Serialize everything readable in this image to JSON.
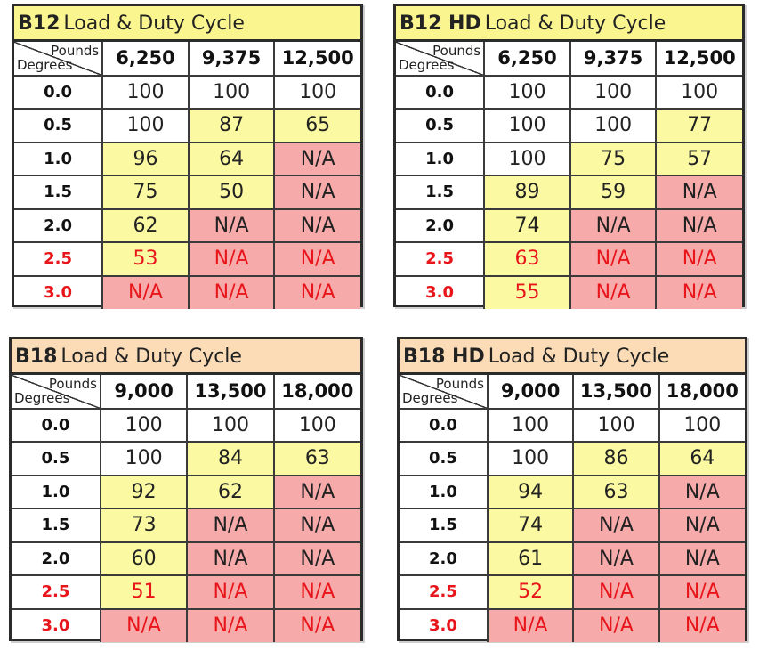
{
  "colors": {
    "white": "#ffffff",
    "yellow": "#fbfaa2",
    "pink": "#f7aaaa",
    "red_text": "#e8151b",
    "b12_title_bg": "#faf58f",
    "b18_title_bg": "#fbdcb6"
  },
  "corner": {
    "pounds_label": "Pounds",
    "degrees_label": "Degrees"
  },
  "tables": [
    {
      "id": "b12",
      "title_bold": "B12",
      "title_rest": "Load & Duty Cycle",
      "columns": [
        "6,250",
        "9,375",
        "12,500"
      ],
      "rows": [
        {
          "deg": "0.0",
          "warn": false,
          "cells": [
            [
              "100",
              "white",
              false
            ],
            [
              "100",
              "white",
              false
            ],
            [
              "100",
              "white",
              false
            ]
          ]
        },
        {
          "deg": "0.5",
          "warn": false,
          "cells": [
            [
              "100",
              "white",
              false
            ],
            [
              "87",
              "yellow",
              false
            ],
            [
              "65",
              "yellow",
              false
            ]
          ]
        },
        {
          "deg": "1.0",
          "warn": false,
          "cells": [
            [
              "96",
              "yellow",
              false
            ],
            [
              "64",
              "yellow",
              false
            ],
            [
              "N/A",
              "pink",
              false
            ]
          ]
        },
        {
          "deg": "1.5",
          "warn": false,
          "cells": [
            [
              "75",
              "yellow",
              false
            ],
            [
              "50",
              "yellow",
              false
            ],
            [
              "N/A",
              "pink",
              false
            ]
          ]
        },
        {
          "deg": "2.0",
          "warn": false,
          "cells": [
            [
              "62",
              "yellow",
              false
            ],
            [
              "N/A",
              "pink",
              false
            ],
            [
              "N/A",
              "pink",
              false
            ]
          ]
        },
        {
          "deg": "2.5",
          "warn": true,
          "cells": [
            [
              "53",
              "yellow",
              true
            ],
            [
              "N/A",
              "pink",
              true
            ],
            [
              "N/A",
              "pink",
              true
            ]
          ]
        },
        {
          "deg": "3.0",
          "warn": true,
          "cells": [
            [
              "N/A",
              "pink",
              true
            ],
            [
              "N/A",
              "pink",
              true
            ],
            [
              "N/A",
              "pink",
              true
            ]
          ]
        }
      ]
    },
    {
      "id": "b12hd",
      "title_bold": "B12 HD",
      "title_rest": "Load & Duty Cycle",
      "columns": [
        "6,250",
        "9,375",
        "12,500"
      ],
      "rows": [
        {
          "deg": "0.0",
          "warn": false,
          "cells": [
            [
              "100",
              "white",
              false
            ],
            [
              "100",
              "white",
              false
            ],
            [
              "100",
              "white",
              false
            ]
          ]
        },
        {
          "deg": "0.5",
          "warn": false,
          "cells": [
            [
              "100",
              "white",
              false
            ],
            [
              "100",
              "white",
              false
            ],
            [
              "77",
              "yellow",
              false
            ]
          ]
        },
        {
          "deg": "1.0",
          "warn": false,
          "cells": [
            [
              "100",
              "white",
              false
            ],
            [
              "75",
              "yellow",
              false
            ],
            [
              "57",
              "yellow",
              false
            ]
          ]
        },
        {
          "deg": "1.5",
          "warn": false,
          "cells": [
            [
              "89",
              "yellow",
              false
            ],
            [
              "59",
              "yellow",
              false
            ],
            [
              "N/A",
              "pink",
              false
            ]
          ]
        },
        {
          "deg": "2.0",
          "warn": false,
          "cells": [
            [
              "74",
              "yellow",
              false
            ],
            [
              "N/A",
              "pink",
              false
            ],
            [
              "N/A",
              "pink",
              false
            ]
          ]
        },
        {
          "deg": "2.5",
          "warn": true,
          "cells": [
            [
              "63",
              "yellow",
              true
            ],
            [
              "N/A",
              "pink",
              true
            ],
            [
              "N/A",
              "pink",
              true
            ]
          ]
        },
        {
          "deg": "3.0",
          "warn": true,
          "cells": [
            [
              "55",
              "yellow",
              true
            ],
            [
              "N/A",
              "pink",
              true
            ],
            [
              "N/A",
              "pink",
              true
            ]
          ]
        }
      ]
    },
    {
      "id": "b18",
      "title_bold": "B18",
      "title_rest": "Load & Duty Cycle",
      "columns": [
        "9,000",
        "13,500",
        "18,000"
      ],
      "rows": [
        {
          "deg": "0.0",
          "warn": false,
          "cells": [
            [
              "100",
              "white",
              false
            ],
            [
              "100",
              "white",
              false
            ],
            [
              "100",
              "white",
              false
            ]
          ]
        },
        {
          "deg": "0.5",
          "warn": false,
          "cells": [
            [
              "100",
              "white",
              false
            ],
            [
              "84",
              "yellow",
              false
            ],
            [
              "63",
              "yellow",
              false
            ]
          ]
        },
        {
          "deg": "1.0",
          "warn": false,
          "cells": [
            [
              "92",
              "yellow",
              false
            ],
            [
              "62",
              "yellow",
              false
            ],
            [
              "N/A",
              "pink",
              false
            ]
          ]
        },
        {
          "deg": "1.5",
          "warn": false,
          "cells": [
            [
              "73",
              "yellow",
              false
            ],
            [
              "N/A",
              "pink",
              false
            ],
            [
              "N/A",
              "pink",
              false
            ]
          ]
        },
        {
          "deg": "2.0",
          "warn": false,
          "cells": [
            [
              "60",
              "yellow",
              false
            ],
            [
              "N/A",
              "pink",
              false
            ],
            [
              "N/A",
              "pink",
              false
            ]
          ]
        },
        {
          "deg": "2.5",
          "warn": true,
          "cells": [
            [
              "51",
              "yellow",
              true
            ],
            [
              "N/A",
              "pink",
              true
            ],
            [
              "N/A",
              "pink",
              true
            ]
          ]
        },
        {
          "deg": "3.0",
          "warn": true,
          "cells": [
            [
              "N/A",
              "pink",
              true
            ],
            [
              "N/A",
              "pink",
              true
            ],
            [
              "N/A",
              "pink",
              true
            ]
          ]
        }
      ]
    },
    {
      "id": "b18hd",
      "title_bold": "B18 HD",
      "title_rest": "Load & Duty Cycle",
      "columns": [
        "9,000",
        "13,500",
        "18,000"
      ],
      "rows": [
        {
          "deg": "0.0",
          "warn": false,
          "cells": [
            [
              "100",
              "white",
              false
            ],
            [
              "100",
              "white",
              false
            ],
            [
              "100",
              "white",
              false
            ]
          ]
        },
        {
          "deg": "0.5",
          "warn": false,
          "cells": [
            [
              "100",
              "white",
              false
            ],
            [
              "86",
              "yellow",
              false
            ],
            [
              "64",
              "yellow",
              false
            ]
          ]
        },
        {
          "deg": "1.0",
          "warn": false,
          "cells": [
            [
              "94",
              "yellow",
              false
            ],
            [
              "63",
              "yellow",
              false
            ],
            [
              "N/A",
              "pink",
              false
            ]
          ]
        },
        {
          "deg": "1.5",
          "warn": false,
          "cells": [
            [
              "74",
              "yellow",
              false
            ],
            [
              "N/A",
              "pink",
              false
            ],
            [
              "N/A",
              "pink",
              false
            ]
          ]
        },
        {
          "deg": "2.0",
          "warn": false,
          "cells": [
            [
              "61",
              "yellow",
              false
            ],
            [
              "N/A",
              "pink",
              false
            ],
            [
              "N/A",
              "pink",
              false
            ]
          ]
        },
        {
          "deg": "2.5",
          "warn": true,
          "cells": [
            [
              "52",
              "yellow",
              true
            ],
            [
              "N/A",
              "pink",
              true
            ],
            [
              "N/A",
              "pink",
              true
            ]
          ]
        },
        {
          "deg": "3.0",
          "warn": true,
          "cells": [
            [
              "N/A",
              "pink",
              true
            ],
            [
              "N/A",
              "pink",
              true
            ],
            [
              "N/A",
              "pink",
              true
            ]
          ]
        }
      ]
    }
  ]
}
